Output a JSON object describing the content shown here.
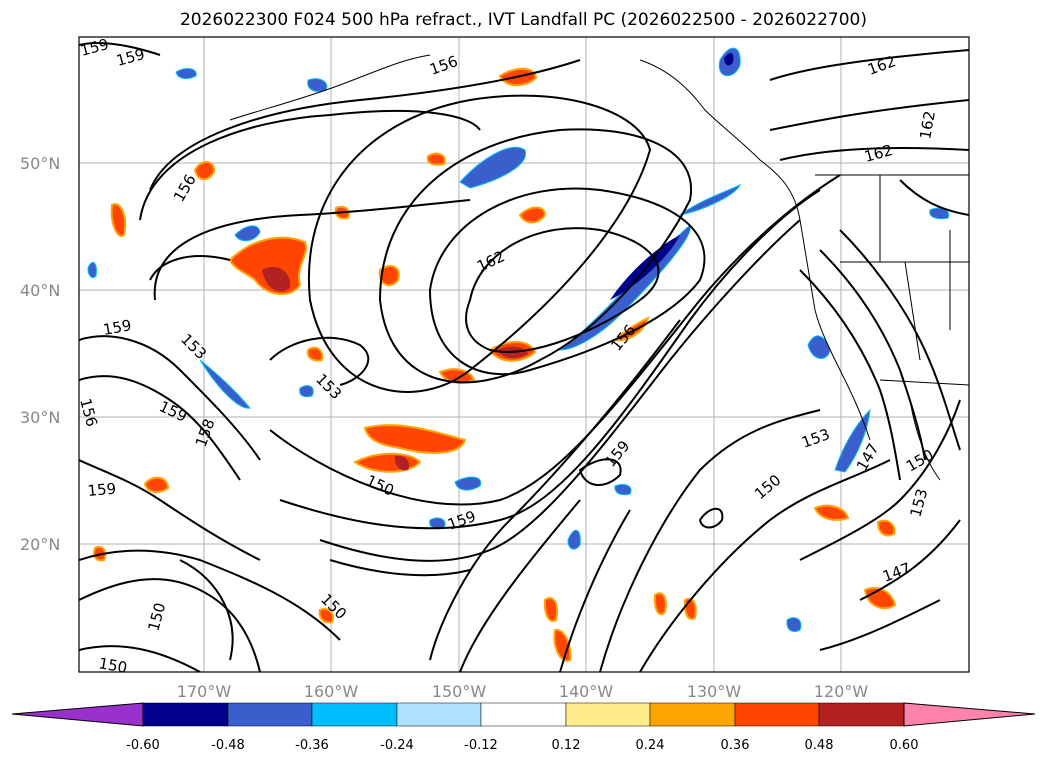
{
  "title": "2026022300 F024 500 hPa refract., IVT Landfall PC (2026022500 - 2026022700)",
  "map": {
    "lat_labels": [
      "50°N",
      "40°N",
      "30°N",
      "20°N"
    ],
    "lon_labels": [
      "170°W",
      "160°W",
      "150°W",
      "140°W",
      "130°W",
      "120°W"
    ],
    "contour_labels": [
      "159",
      "159",
      "156",
      "162",
      "162",
      "162",
      "156",
      "159",
      "153",
      "156",
      "153",
      "159",
      "158",
      "159",
      "162",
      "159",
      "156",
      "150",
      "150",
      "159",
      "153",
      "150",
      "147",
      "150",
      "153",
      "147",
      "150",
      "150"
    ],
    "colors": {
      "contour": "#000000",
      "grid": "#b0b0b0",
      "neg_fill": "#3a5fcd",
      "pos_fill": "#ff4500"
    }
  },
  "colorbar": {
    "levels": [
      "-0.60",
      "-0.48",
      "-0.36",
      "-0.24",
      "-0.12",
      "0.12",
      "0.24",
      "0.36",
      "0.48",
      "0.60"
    ],
    "colors": [
      "#9932cc",
      "#00008b",
      "#3a5fcd",
      "#00bfff",
      "#b0e2ff",
      "#ffffff",
      "#ffec8b",
      "#ffa500",
      "#ff4500",
      "#b22222",
      "#ff82ab"
    ]
  }
}
